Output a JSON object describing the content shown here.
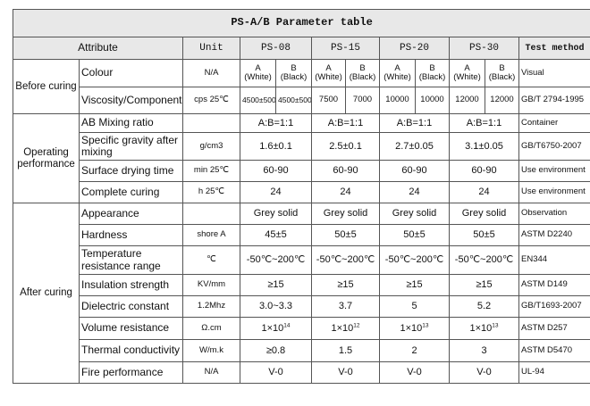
{
  "title": "PS-A/B Parameter table",
  "header": {
    "attribute": "Attribute",
    "unit": "Unit",
    "models": [
      "PS-08",
      "PS-15",
      "PS-20",
      "PS-30"
    ],
    "test_method": "Test method"
  },
  "groups": {
    "before": "Before curing",
    "operating": "Operating performance",
    "after": "After curing"
  },
  "rows": {
    "colour": {
      "name": "Colour",
      "unit": "N/A",
      "test": "Visual",
      "a": "A (White)",
      "b": "B (Black)"
    },
    "viscosity": {
      "name": "Viscosity/Component",
      "unit": "cps 25℃",
      "test": "GB/T 2794-1995",
      "values": [
        "4500±500",
        "4500±500",
        "7500",
        "7000",
        "10000",
        "10000",
        "12000",
        "12000"
      ]
    },
    "mixing": {
      "name": "AB Mixing ratio",
      "unit": "",
      "test": "Container",
      "values": [
        "A:B=1:1",
        "A:B=1:1",
        "A:B=1:1",
        "A:B=1:1"
      ]
    },
    "gravity": {
      "name": "Specific gravity after mixing",
      "unit": "g/cm3",
      "test": "GB/T6750-2007",
      "values": [
        "1.6±0.1",
        "2.5±0.1",
        "2.7±0.05",
        "3.1±0.05"
      ]
    },
    "drying": {
      "name": "Surface drying time",
      "unit": "min 25℃",
      "test": "Use environment",
      "values": [
        "60-90",
        "60-90",
        "60-90",
        "60-90"
      ]
    },
    "curing": {
      "name": "Complete curing",
      "unit": "h 25℃",
      "test": "Use environment",
      "values": [
        "24",
        "24",
        "24",
        "24"
      ]
    },
    "appearance": {
      "name": "Appearance",
      "unit": "",
      "test": "Observation",
      "values": [
        "Grey solid",
        "Grey solid",
        "Grey solid",
        "Grey solid"
      ]
    },
    "hardness": {
      "name": "Hardness",
      "unit": "shore A",
      "test": "ASTM D2240",
      "values": [
        "45±5",
        "50±5",
        "50±5",
        "50±5"
      ]
    },
    "temperature": {
      "name": "Temperature resistance range",
      "unit": "℃",
      "test": "EN344",
      "values": [
        "-50℃~200℃",
        "-50℃~200℃",
        "-50℃~200℃",
        "-50℃~200℃"
      ]
    },
    "insulation": {
      "name": "Insulation strength",
      "unit": "KV/mm",
      "test": "ASTM D149",
      "values": [
        "≥15",
        "≥15",
        "≥15",
        "≥15"
      ]
    },
    "dielectric": {
      "name": "Dielectric constant",
      "unit": "1.2Mhz",
      "test": "GB/T1693-2007",
      "values": [
        "3.0~3.3",
        "3.7",
        "5",
        "5.2"
      ]
    },
    "volume": {
      "name": "Volume resistance",
      "unit": "Ω.cm",
      "test": "ASTM D257",
      "base": "1×10",
      "exponents": [
        "14",
        "12",
        "13",
        "13"
      ]
    },
    "thermal": {
      "name": "Thermal conductivity",
      "unit": "W/m.k",
      "test": "ASTM D5470",
      "values": [
        "≥0.8",
        "1.5",
        "2",
        "3"
      ]
    },
    "fire": {
      "name": "Fire performance",
      "unit": "N/A",
      "test": "UL-94",
      "values": [
        "V-0",
        "V-0",
        "V-0",
        "V-0"
      ]
    }
  }
}
